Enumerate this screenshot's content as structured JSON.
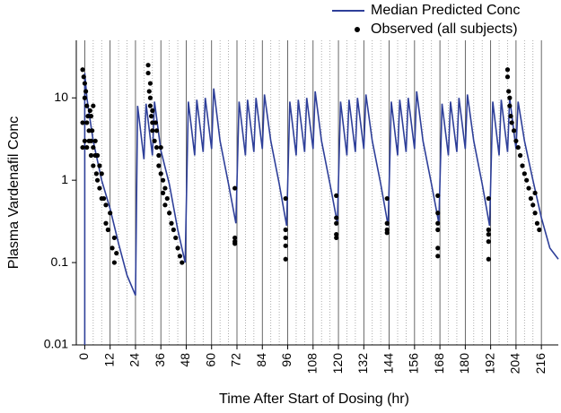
{
  "chart_data": {
    "type": "line",
    "log_y": true,
    "xlabel": "Time After Start of Dosing (hr)",
    "ylabel": "Plasma Vardenafil Conc",
    "xlim": [
      -4,
      224
    ],
    "ylim": [
      0.01,
      50
    ],
    "xticks": [
      0,
      12,
      24,
      36,
      48,
      60,
      72,
      84,
      96,
      108,
      120,
      132,
      144,
      156,
      168,
      180,
      192,
      204,
      216
    ],
    "yticks": [
      0.01,
      0.1,
      1,
      10
    ],
    "grid": true,
    "legend": "top-right",
    "series": [
      {
        "name": "Median Predicted Conc",
        "color": "#2e3f99",
        "kind": "line",
        "x": [
          0,
          0,
          1,
          4,
          8,
          12,
          16,
          20,
          24,
          25,
          28,
          29,
          32,
          33,
          36,
          40,
          44,
          47.5,
          49,
          52,
          53,
          56,
          57,
          60,
          61,
          64,
          68,
          71.5,
          73,
          76,
          77,
          80,
          81,
          84,
          85,
          88,
          92,
          95.5,
          97,
          100,
          101,
          104,
          105,
          108,
          109,
          112,
          116,
          119.5,
          121,
          124,
          125,
          128,
          129,
          132,
          133,
          136,
          140,
          143.5,
          145,
          148,
          149,
          152,
          153,
          156,
          157,
          160,
          164,
          167.5,
          169,
          172,
          173,
          176,
          177,
          180,
          181,
          184,
          188,
          191.5,
          193,
          196,
          197,
          200,
          201,
          204,
          205,
          208,
          212,
          216,
          220,
          224
        ],
        "values": [
          0.01,
          20,
          10,
          3,
          1,
          0.45,
          0.17,
          0.07,
          0.04,
          8,
          1.8,
          8.5,
          2,
          9,
          2.3,
          0.9,
          0.25,
          0.1,
          9,
          2,
          9.5,
          2.2,
          10,
          2.4,
          13,
          3,
          0.9,
          0.3,
          9,
          2,
          9.5,
          2.2,
          10,
          2.4,
          11,
          3,
          0.9,
          0.28,
          9,
          2,
          9.5,
          2.2,
          10,
          2.4,
          12,
          3,
          0.9,
          0.3,
          9,
          2,
          9.5,
          2.2,
          10,
          2.4,
          11,
          3,
          0.9,
          0.28,
          9,
          2,
          9.5,
          2.2,
          10,
          2.4,
          12,
          3,
          0.9,
          0.3,
          8.5,
          2,
          9,
          2.2,
          10,
          2.4,
          11,
          3,
          0.9,
          0.28,
          9,
          2,
          9.5,
          2.2,
          10,
          2.4,
          9,
          3,
          1,
          0.35,
          0.15,
          0.11
        ]
      },
      {
        "name": "Observed (all subjects)",
        "color": "#000000",
        "kind": "scatter",
        "x": [
          -1,
          -0.5,
          0,
          0,
          0.5,
          1,
          1,
          1.5,
          2,
          2,
          2.5,
          3,
          3,
          3.5,
          4,
          4,
          5,
          5,
          5.5,
          6,
          6,
          7,
          7,
          8,
          8,
          9,
          10,
          10,
          11,
          12,
          13,
          14,
          14,
          15,
          -1,
          0,
          1,
          3,
          4,
          -1,
          30,
          30,
          30.5,
          31,
          31,
          31.5,
          32,
          32,
          33,
          33.5,
          34,
          34,
          35,
          35,
          36,
          36,
          37,
          37,
          38,
          38,
          39,
          40,
          41,
          42,
          43,
          44,
          45,
          46,
          31,
          32,
          71,
          71,
          71,
          71,
          95,
          95,
          95,
          95,
          95,
          119,
          119,
          119,
          119,
          119,
          143,
          143,
          143,
          143,
          167,
          167,
          167,
          167,
          167,
          167,
          191,
          191,
          191,
          191,
          191,
          200,
          200,
          200.5,
          201,
          201,
          201.5,
          202,
          203,
          204,
          205,
          206,
          207,
          208,
          209,
          210,
          211,
          212,
          213,
          214,
          215,
          213
        ],
        "values": [
          22,
          18,
          15,
          10,
          12,
          8,
          5,
          6,
          4,
          3,
          7,
          3,
          2,
          4,
          2.5,
          1.5,
          3,
          2,
          1.2,
          2,
          1,
          1.5,
          0.8,
          1.2,
          0.6,
          0.6,
          0.5,
          0.3,
          0.25,
          0.4,
          0.15,
          0.2,
          0.1,
          0.13,
          5,
          3,
          2.5,
          6,
          8,
          2.5,
          25,
          20,
          12,
          10,
          8,
          6,
          5,
          4,
          3,
          5,
          2.5,
          4,
          2,
          1.5,
          1.2,
          2.5,
          1,
          0.7,
          0.8,
          0.5,
          0.6,
          0.4,
          0.3,
          0.25,
          0.2,
          0.15,
          0.12,
          0.1,
          15,
          7,
          0.8,
          0.2,
          0.18,
          0.17,
          0.6,
          0.25,
          0.2,
          0.16,
          0.11,
          0.65,
          0.35,
          0.3,
          0.22,
          0.2,
          0.6,
          0.3,
          0.25,
          0.23,
          0.65,
          0.4,
          0.3,
          0.25,
          0.15,
          0.12,
          0.6,
          0.25,
          0.22,
          0.18,
          0.11,
          22,
          18,
          12,
          10,
          8,
          6,
          5,
          4,
          3,
          2.5,
          2,
          1.5,
          1.2,
          1,
          0.8,
          0.6,
          0.5,
          0.4,
          0.3,
          0.25,
          0.7
        ]
      }
    ]
  }
}
